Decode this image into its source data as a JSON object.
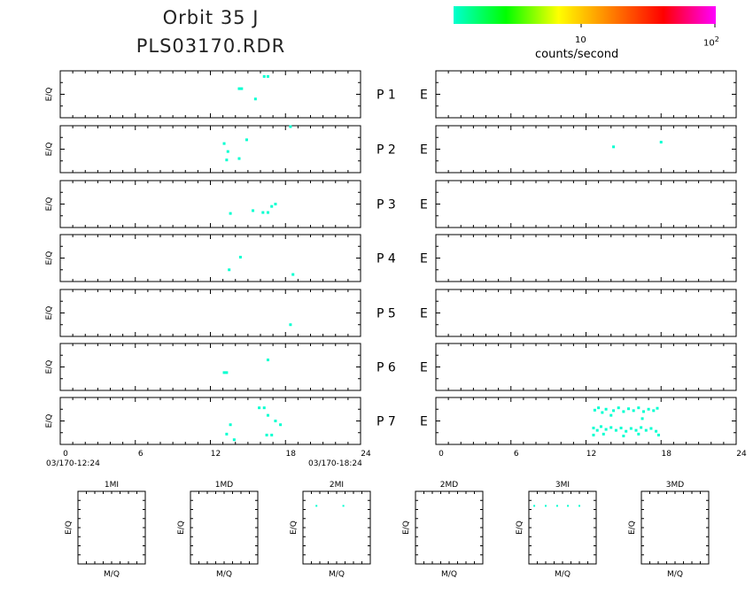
{
  "header": {
    "title_line1": "Orbit 35 J",
    "title_line2": "PLS03170.RDR"
  },
  "colorbar": {
    "label": "counts/second",
    "tick_10": "10",
    "tick_100_base": "10",
    "tick_100_exp": "2",
    "scale": "log",
    "colors": [
      "#00ffd0",
      "#00ff00",
      "#ffff00",
      "#ff8000",
      "#ff0000",
      "#ff00ff"
    ]
  },
  "panel_axis_labels": {
    "ylabel": "E/Q",
    "xlabel": "M/Q"
  },
  "chart_data": [
    {
      "type": "scatter",
      "name": "left-panels",
      "ylabel": "E/Q",
      "xlim": [
        0,
        24
      ],
      "x_ticks": [
        "0",
        "6",
        "12",
        "18",
        "24"
      ],
      "x_start_label": "03/170-12:24",
      "x_end_label": "03/170-18:24",
      "panels": [
        {
          "label": "P 1",
          "points": [
            [
              14.3,
              0.62
            ],
            [
              14.5,
              0.62
            ],
            [
              15.6,
              0.4
            ],
            [
              16.6,
              0.88
            ],
            [
              16.3,
              0.88
            ]
          ]
        },
        {
          "label": "P 2",
          "points": [
            [
              13.1,
              0.62
            ],
            [
              13.4,
              0.45
            ],
            [
              13.3,
              0.27
            ],
            [
              14.3,
              0.3
            ],
            [
              14.9,
              0.7
            ],
            [
              18.4,
              0.98
            ]
          ]
        },
        {
          "label": "P 3",
          "points": [
            [
              13.6,
              0.3
            ],
            [
              15.4,
              0.36
            ],
            [
              16.2,
              0.32
            ],
            [
              16.6,
              0.32
            ],
            [
              16.9,
              0.45
            ],
            [
              17.2,
              0.5
            ]
          ]
        },
        {
          "label": "P 4",
          "points": [
            [
              13.5,
              0.25
            ],
            [
              14.4,
              0.52
            ],
            [
              18.6,
              0.15
            ]
          ]
        },
        {
          "label": "P 5",
          "points": [
            [
              18.4,
              0.25
            ]
          ]
        },
        {
          "label": "P 6",
          "points": [
            [
              13.1,
              0.38
            ],
            [
              13.3,
              0.38
            ],
            [
              16.6,
              0.65
            ]
          ]
        },
        {
          "label": "P 7",
          "points": [
            [
              15.9,
              0.78
            ],
            [
              16.3,
              0.78
            ],
            [
              16.6,
              0.62
            ],
            [
              17.2,
              0.5
            ],
            [
              17.6,
              0.42
            ],
            [
              16.5,
              0.2
            ],
            [
              16.9,
              0.2
            ],
            [
              13.3,
              0.22
            ],
            [
              13.6,
              0.42
            ],
            [
              13.9,
              0.1
            ]
          ]
        }
      ]
    },
    {
      "type": "scatter",
      "name": "right-panels",
      "xlim": [
        0,
        24
      ],
      "x_ticks": [
        "0",
        "6",
        "12",
        "18",
        "24"
      ],
      "panels": [
        {
          "label": "E",
          "points": []
        },
        {
          "label": "E",
          "points": [
            [
              14.2,
              0.55
            ],
            [
              18.0,
              0.65
            ]
          ]
        },
        {
          "label": "E",
          "points": []
        },
        {
          "label": "E",
          "points": []
        },
        {
          "label": "E",
          "points": []
        },
        {
          "label": "E",
          "points": []
        },
        {
          "label": "E",
          "points": [
            [
              12.7,
              0.73
            ],
            [
              13.0,
              0.78
            ],
            [
              13.3,
              0.68
            ],
            [
              13.6,
              0.75
            ],
            [
              14.2,
              0.72
            ],
            [
              14.6,
              0.78
            ],
            [
              15.0,
              0.7
            ],
            [
              15.4,
              0.76
            ],
            [
              15.8,
              0.72
            ],
            [
              16.2,
              0.78
            ],
            [
              16.6,
              0.7
            ],
            [
              17.0,
              0.75
            ],
            [
              17.4,
              0.72
            ],
            [
              17.7,
              0.77
            ],
            [
              12.6,
              0.35
            ],
            [
              12.9,
              0.3
            ],
            [
              13.2,
              0.38
            ],
            [
              13.6,
              0.32
            ],
            [
              14.0,
              0.36
            ],
            [
              14.4,
              0.3
            ],
            [
              14.8,
              0.35
            ],
            [
              15.2,
              0.28
            ],
            [
              15.6,
              0.34
            ],
            [
              16.0,
              0.3
            ],
            [
              16.4,
              0.36
            ],
            [
              16.8,
              0.3
            ],
            [
              17.2,
              0.34
            ],
            [
              17.6,
              0.28
            ],
            [
              12.6,
              0.2
            ],
            [
              13.4,
              0.22
            ],
            [
              15.0,
              0.18
            ],
            [
              16.2,
              0.22
            ],
            [
              17.8,
              0.2
            ],
            [
              14.0,
              0.62
            ],
            [
              16.5,
              0.55
            ]
          ]
        }
      ]
    },
    {
      "type": "scatter",
      "name": "mass-panels",
      "xlabel": "M/Q",
      "ylabel": "E/Q",
      "panels": [
        {
          "label": "1MI",
          "points": []
        },
        {
          "label": "1MD",
          "points": []
        },
        {
          "label": "2MI",
          "points": [
            [
              0.2,
              0.8
            ],
            [
              0.6,
              0.8
            ]
          ]
        },
        {
          "label": "2MD",
          "points": []
        },
        {
          "label": "3MI",
          "points": [
            [
              0.08,
              0.8
            ],
            [
              0.25,
              0.8
            ],
            [
              0.42,
              0.8
            ],
            [
              0.58,
              0.8
            ],
            [
              0.75,
              0.8
            ]
          ]
        },
        {
          "label": "3MD",
          "points": []
        }
      ]
    }
  ]
}
